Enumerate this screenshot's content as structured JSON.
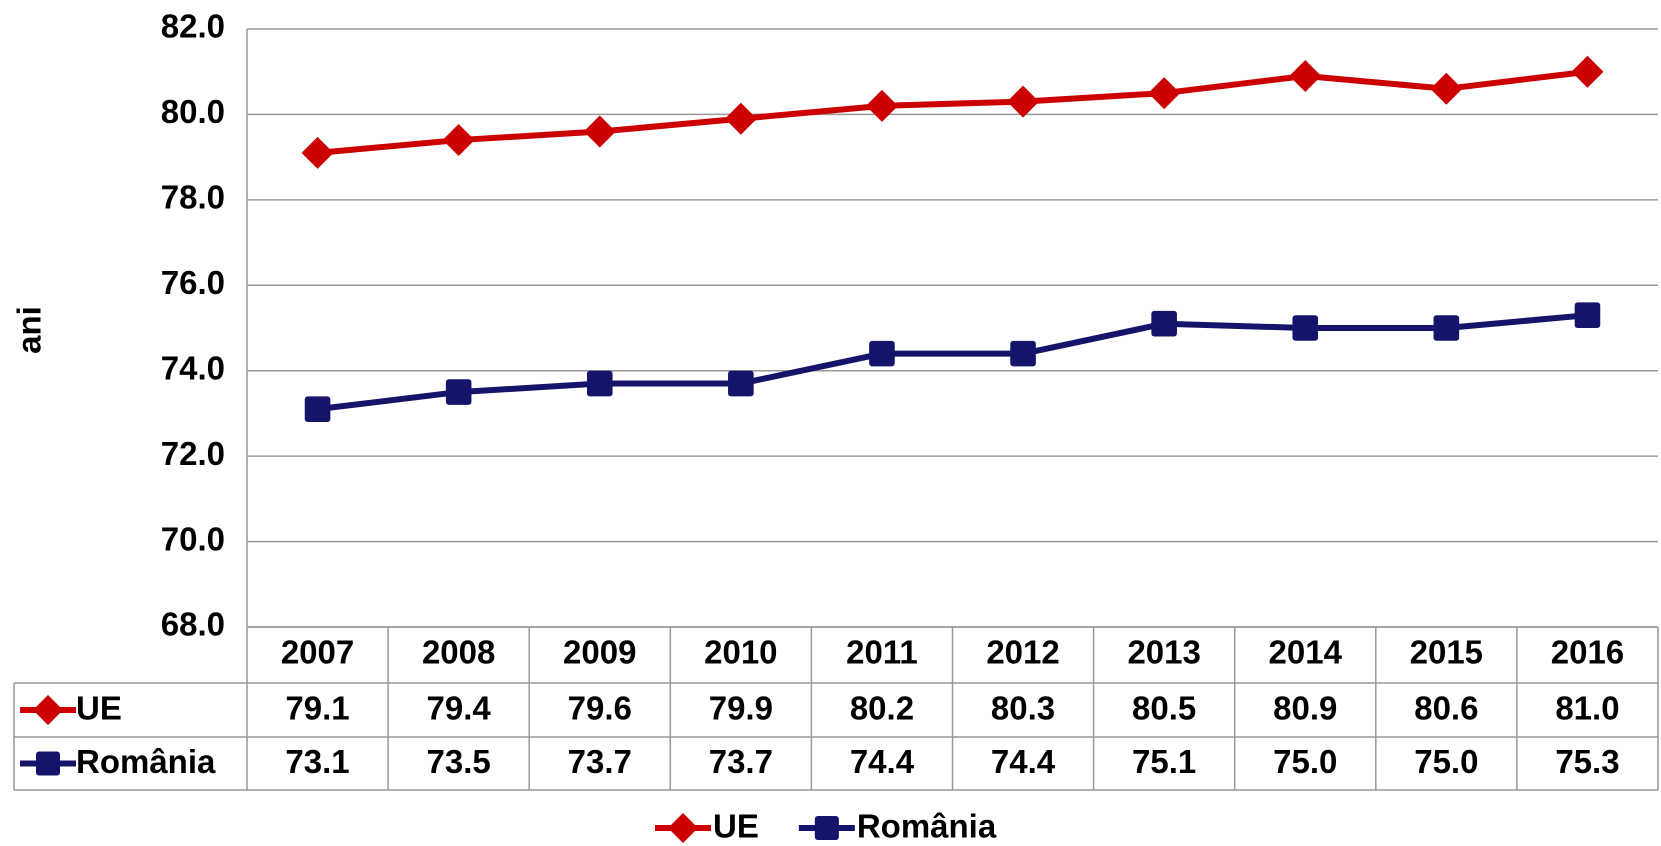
{
  "chart_data": {
    "type": "line",
    "y_label": "ani",
    "categories": [
      "2007",
      "2008",
      "2009",
      "2010",
      "2011",
      "2012",
      "2013",
      "2014",
      "2015",
      "2016"
    ],
    "series": [
      {
        "name": "UE",
        "color": "#cc0000",
        "marker": "diamond",
        "values": [
          79.1,
          79.4,
          79.6,
          79.9,
          80.2,
          80.3,
          80.5,
          80.9,
          80.6,
          81
        ],
        "value_labels": [
          "79.1",
          "79.4",
          "79.6",
          "79.9",
          "80.2",
          "80.3",
          "80.5",
          "80.9",
          "80.6",
          "81.0"
        ]
      },
      {
        "name": "România",
        "color": "#14146b",
        "marker": "square",
        "values": [
          73.1,
          73.5,
          73.7,
          73.7,
          74.4,
          74.4,
          75.1,
          75,
          75,
          75.3
        ],
        "value_labels": [
          "73.1",
          "73.5",
          "73.7",
          "73.7",
          "74.4",
          "74.4",
          "75.1",
          "75.0",
          "75.0",
          "75.3"
        ]
      }
    ],
    "ylim": [
      68,
      82
    ],
    "yticks": [
      {
        "value": 68,
        "label": "68.0"
      },
      {
        "value": 70,
        "label": "70.0"
      },
      {
        "value": 72,
        "label": "72.0"
      },
      {
        "value": 74,
        "label": "74.0"
      },
      {
        "value": 76,
        "label": "76.0"
      },
      {
        "value": 78,
        "label": "78.0"
      },
      {
        "value": 80,
        "label": "80.0"
      },
      {
        "value": 82,
        "label": "82.0"
      }
    ],
    "grid": true,
    "legend": "bottom",
    "data_table": true
  }
}
